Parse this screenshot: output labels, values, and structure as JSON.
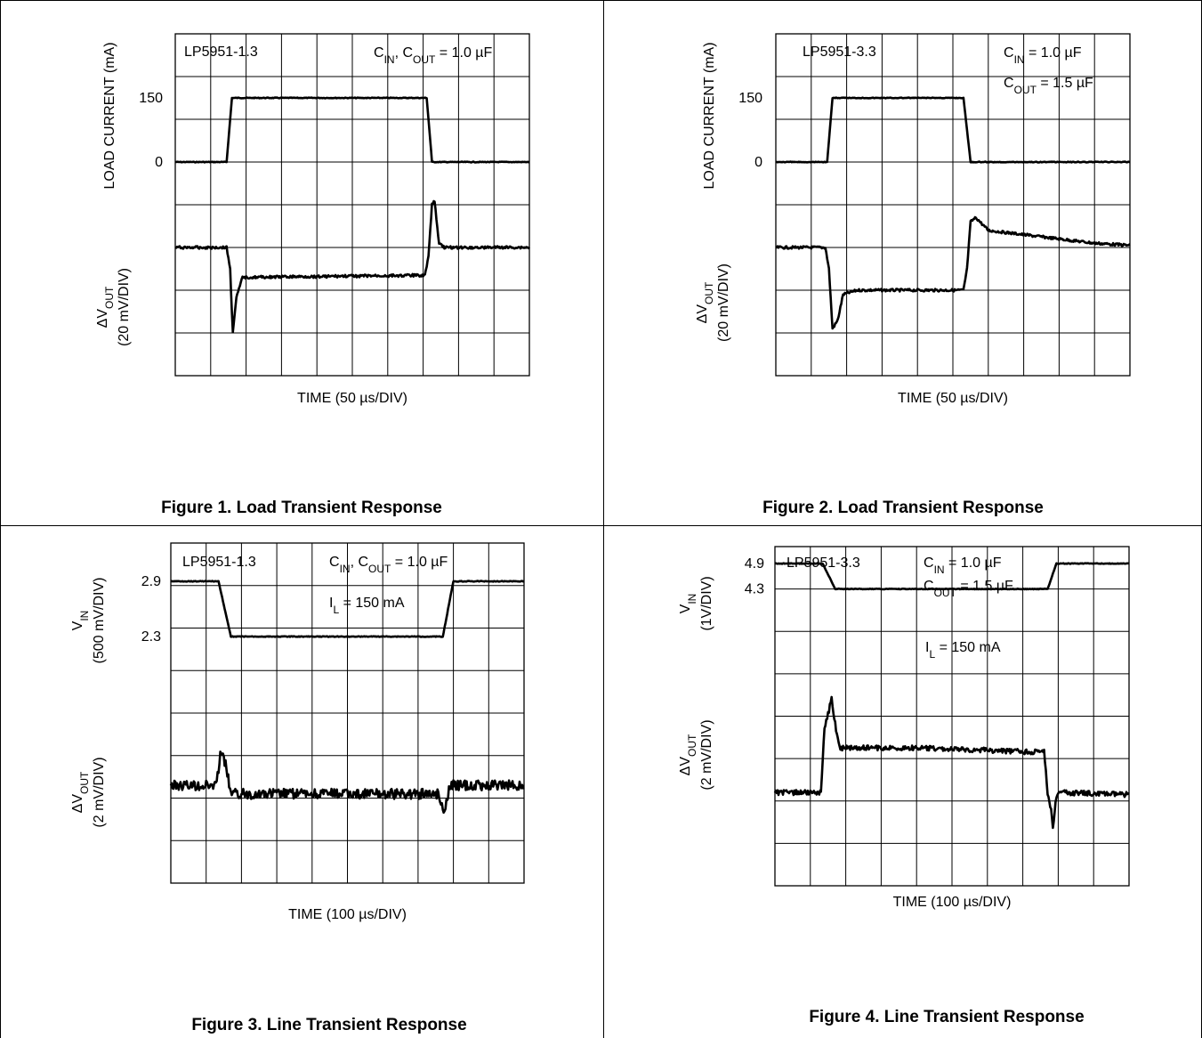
{
  "chart_data": [
    {
      "type": "line",
      "part": "LP5951-1.3",
      "conditions": [
        "C<sub>IN</sub>, C<sub>OUT</sub> = 1.0 µF"
      ],
      "conditions_text": [
        "CIN, COUT = 1.0 µF"
      ],
      "xlabel": "TIME (50 µs/DIV)",
      "x_divisions": 10,
      "y_divisions": 8,
      "top_trace": {
        "ylabel": "LOAD CURRENT (mA)",
        "tick_labels": [
          "150",
          "0"
        ],
        "tick_values_div": [
          1.5,
          3.0
        ],
        "points_div": [
          [
            0,
            3.0
          ],
          [
            1.45,
            3.0
          ],
          [
            1.6,
            1.5
          ],
          [
            7.1,
            1.5
          ],
          [
            7.25,
            3.0
          ],
          [
            10,
            3.0
          ]
        ]
      },
      "bottom_trace": {
        "ylabel": "ΔV<tspan baseline-shift='sub' font-size='70%'>OUT</tspan>",
        "ylabel_text": "ΔVOUT",
        "ylabel_units": "(20 mV/DIV)",
        "points_div": [
          [
            0,
            5.0
          ],
          [
            1.45,
            5.0
          ],
          [
            1.55,
            5.5
          ],
          [
            1.62,
            7.0
          ],
          [
            1.72,
            6.2
          ],
          [
            1.9,
            5.7
          ],
          [
            7.05,
            5.65
          ],
          [
            7.15,
            5.2
          ],
          [
            7.25,
            4.0
          ],
          [
            7.32,
            3.9
          ],
          [
            7.45,
            4.9
          ],
          [
            7.6,
            5.0
          ],
          [
            10,
            5.0
          ]
        ],
        "noise": 0.03
      }
    },
    {
      "type": "line",
      "part": "LP5951-3.3",
      "conditions": [
        "C<sub>IN</sub> = 1.0 µF",
        "C<sub>OUT</sub> = 1.5 µF"
      ],
      "conditions_text": [
        "CIN = 1.0 µF",
        "COUT = 1.5 µF"
      ],
      "xlabel": "TIME (50 µs/DIV)",
      "x_divisions": 10,
      "y_divisions": 8,
      "top_trace": {
        "ylabel": "LOAD CURRENT (mA)",
        "tick_labels": [
          "150",
          "0"
        ],
        "tick_values_div": [
          1.5,
          3.0
        ],
        "points_div": [
          [
            0,
            3.0
          ],
          [
            1.45,
            3.0
          ],
          [
            1.6,
            1.5
          ],
          [
            5.3,
            1.5
          ],
          [
            5.5,
            3.0
          ],
          [
            10,
            3.0
          ]
        ]
      },
      "bottom_trace": {
        "ylabel": "ΔV<tspan baseline-shift='sub' font-size='70%'>OUT</tspan>",
        "ylabel_text": "ΔVOUT",
        "ylabel_units": "(20 mV/DIV)",
        "points_div": [
          [
            0,
            5.0
          ],
          [
            1.4,
            5.0
          ],
          [
            1.5,
            5.5
          ],
          [
            1.6,
            6.9
          ],
          [
            1.75,
            6.7
          ],
          [
            1.9,
            6.1
          ],
          [
            2.3,
            6.0
          ],
          [
            5.3,
            6.0
          ],
          [
            5.4,
            5.5
          ],
          [
            5.5,
            4.4
          ],
          [
            5.65,
            4.3
          ],
          [
            6.0,
            4.6
          ],
          [
            7.0,
            4.7
          ],
          [
            8.0,
            4.8
          ],
          [
            9.0,
            4.9
          ],
          [
            10,
            4.95
          ]
        ],
        "noise": 0.03
      }
    },
    {
      "type": "line",
      "part": "LP5951-1.3",
      "conditions": [
        "C<sub>IN</sub>, C<sub>OUT</sub> = 1.0 µF",
        "I<sub>L</sub> = 150 mA"
      ],
      "conditions_text": [
        "CIN, COUT = 1.0 µF",
        "IL = 150 mA"
      ],
      "xlabel": "TIME (100 µs/DIV)",
      "x_divisions": 10,
      "y_divisions": 8,
      "top_trace": {
        "ylabel": "V<tspan baseline-shift='sub' font-size='70%'>IN</tspan>",
        "ylabel_text": "VIN",
        "ylabel_units": "(500 mV/DIV)",
        "tick_labels": [
          "2.9",
          "2.3"
        ],
        "tick_values_div": [
          0.9,
          2.2
        ],
        "points_div": [
          [
            0,
            0.9
          ],
          [
            1.35,
            0.9
          ],
          [
            1.7,
            2.2
          ],
          [
            7.7,
            2.2
          ],
          [
            8.0,
            0.9
          ],
          [
            10,
            0.9
          ]
        ]
      },
      "bottom_trace": {
        "ylabel": "ΔV<tspan baseline-shift='sub' font-size='70%'>OUT</tspan>",
        "ylabel_text": "ΔVOUT",
        "ylabel_units": "(2 mV/DIV)",
        "points_div": [
          [
            0,
            5.7
          ],
          [
            1.3,
            5.7
          ],
          [
            1.4,
            4.9
          ],
          [
            1.55,
            5.2
          ],
          [
            1.7,
            5.9
          ],
          [
            7.6,
            5.9
          ],
          [
            7.7,
            6.3
          ],
          [
            7.8,
            6.1
          ],
          [
            7.9,
            5.7
          ],
          [
            10,
            5.7
          ]
        ],
        "noise": 0.12
      }
    },
    {
      "type": "line",
      "part": "LP5951-3.3",
      "conditions": [
        "C<sub>IN</sub> = 1.0 µF",
        "C<sub>OUT</sub> = 1.5 µF",
        "I<sub>L</sub> = 150 mA"
      ],
      "conditions_text": [
        "CIN = 1.0 µF",
        "COUT = 1.5 µF",
        "IL = 150 mA"
      ],
      "xlabel": "TIME (100 µs/DIV)",
      "x_divisions": 10,
      "y_divisions": 8,
      "top_trace": {
        "ylabel": "V<tspan baseline-shift='sub' font-size='70%'>IN</tspan>",
        "ylabel_text": "VIN",
        "ylabel_units": "(1V/DIV)",
        "tick_labels": [
          "4.9",
          "4.3"
        ],
        "tick_values_div": [
          0.4,
          1.0
        ],
        "points_div": [
          [
            0,
            0.4
          ],
          [
            1.35,
            0.4
          ],
          [
            1.7,
            1.0
          ],
          [
            7.7,
            1.0
          ],
          [
            7.95,
            0.4
          ],
          [
            10,
            0.4
          ]
        ]
      },
      "bottom_trace": {
        "ylabel": "ΔV<tspan baseline-shift='sub' font-size='70%'>OUT</tspan>",
        "ylabel_text": "ΔVOUT",
        "ylabel_units": "(2 mV/DIV)",
        "points_div": [
          [
            0,
            5.8
          ],
          [
            1.3,
            5.8
          ],
          [
            1.4,
            4.3
          ],
          [
            1.6,
            3.6
          ],
          [
            1.72,
            4.3
          ],
          [
            1.85,
            4.75
          ],
          [
            4.0,
            4.75
          ],
          [
            7.6,
            4.85
          ],
          [
            7.7,
            5.8
          ],
          [
            7.8,
            6.2
          ],
          [
            7.85,
            6.6
          ],
          [
            7.95,
            5.9
          ],
          [
            8.1,
            5.8
          ],
          [
            10,
            5.85
          ]
        ],
        "noise": 0.06
      }
    }
  ],
  "captions": [
    "Figure 1. Load Transient Response",
    "Figure 2. Load Transient Response",
    "Figure 3. Line Transient Response",
    "Figure 4. Line Transient Response"
  ]
}
